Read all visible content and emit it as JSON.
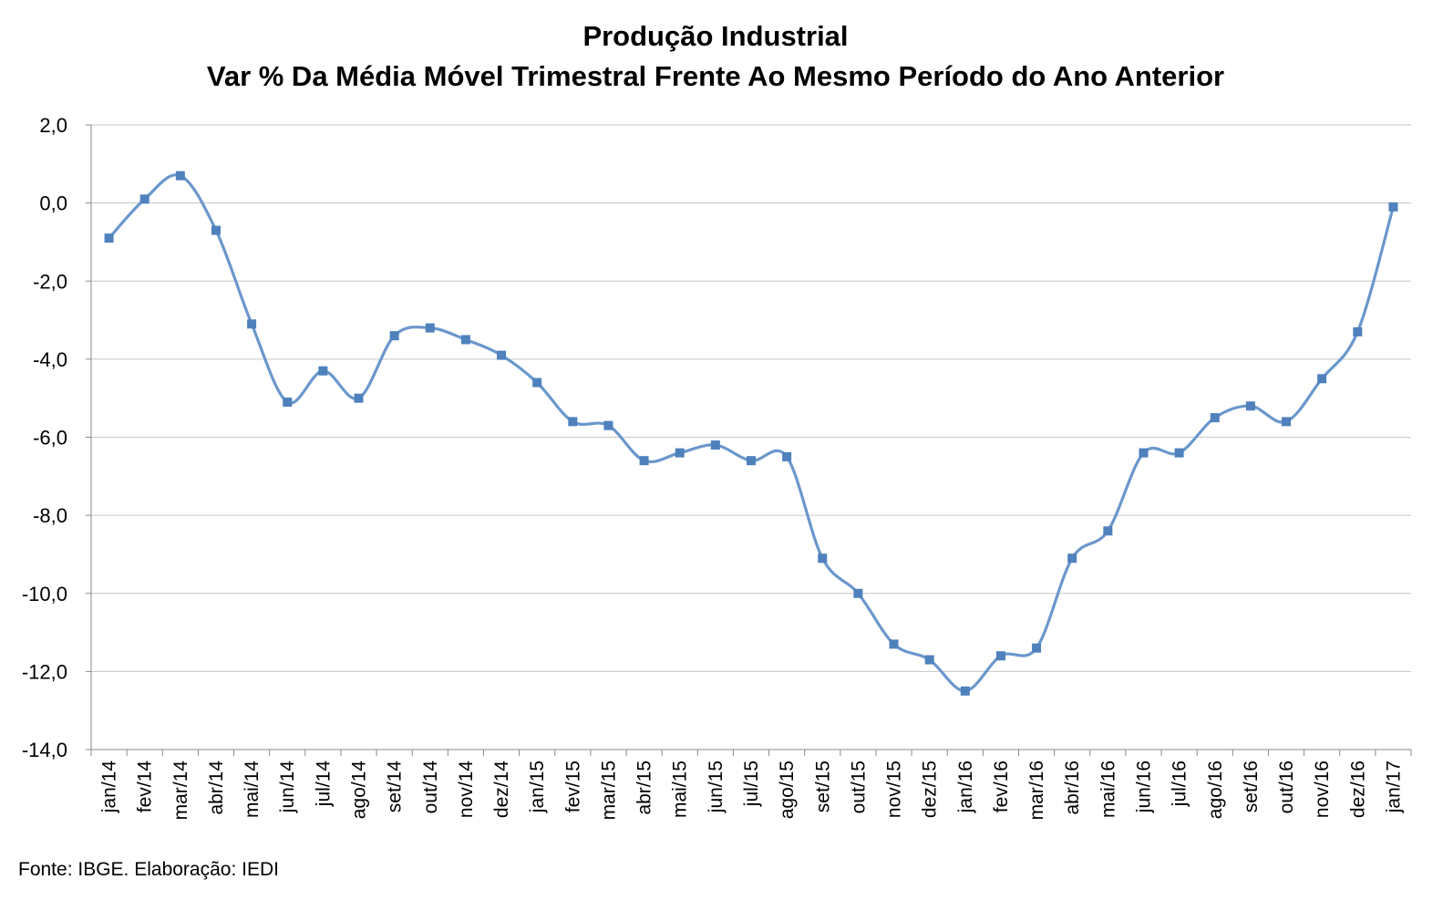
{
  "chart_data": {
    "type": "line",
    "title": "Produção Industrial",
    "subtitle": "Var % Da Média Móvel Trimestral Frente Ao Mesmo Período do Ano Anterior",
    "xlabel": "",
    "ylabel": "",
    "categories": [
      "jan/14",
      "fev/14",
      "mar/14",
      "abr/14",
      "mai/14",
      "jun/14",
      "jul/14",
      "ago/14",
      "set/14",
      "out/14",
      "nov/14",
      "dez/14",
      "jan/15",
      "fev/15",
      "mar/15",
      "abr/15",
      "mai/15",
      "jun/15",
      "jul/15",
      "ago/15",
      "set/15",
      "out/15",
      "nov/15",
      "dez/15",
      "jan/16",
      "fev/16",
      "mar/16",
      "abr/16",
      "mai/16",
      "jun/16",
      "jul/16",
      "ago/16",
      "set/16",
      "out/16",
      "nov/16",
      "dez/16",
      "jan/17"
    ],
    "series": [
      {
        "values": [
          -0.9,
          0.1,
          0.7,
          -0.7,
          -3.1,
          -5.1,
          -4.3,
          -5.0,
          -3.4,
          -3.2,
          -3.5,
          -3.9,
          -4.6,
          -5.6,
          -5.7,
          -6.6,
          -6.4,
          -6.2,
          -6.6,
          -6.5,
          -9.1,
          -10.0,
          -11.3,
          -11.7,
          -12.5,
          -11.6,
          -11.4,
          -9.1,
          -8.4,
          -6.4,
          -6.4,
          -5.5,
          -5.2,
          -5.6,
          -4.5,
          -3.3,
          -0.1
        ],
        "color": "#6a97cc",
        "marker_color": "#4f81bd"
      }
    ],
    "ylim": [
      -14.0,
      2.0
    ],
    "y_ticks": [
      "2,0",
      "0,0",
      "-2,0",
      "-4,0",
      "-6,0",
      "-8,0",
      "-10,0",
      "-12,0",
      "-14,0"
    ],
    "grid": true,
    "legend": "none",
    "smooth": true
  },
  "source": "Fonte: IBGE. Elaboração: IEDI"
}
